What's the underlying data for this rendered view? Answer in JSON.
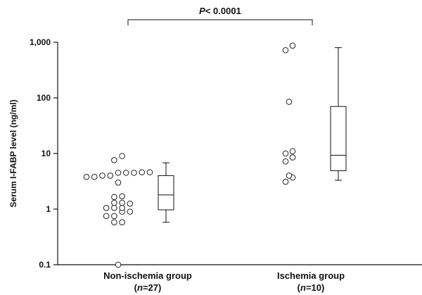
{
  "chart_data": {
    "type": "scatter",
    "ylabel": "Serum I-FABP level (ng/ml)",
    "yscale": "log",
    "ylim": [
      0.1,
      1000
    ],
    "yticks": [
      0.1,
      1,
      10,
      100,
      1000
    ],
    "ytick_labels": [
      "0.1",
      "1",
      "10",
      "100",
      "1,000"
    ],
    "significance": {
      "italic": "P",
      "rest": "< 0.0001"
    },
    "groups": [
      {
        "name": "Non-ischemia group",
        "n_prefix": "(",
        "n_italic": "n",
        "n_suffix": "=27)",
        "points": [
          0.1,
          0.58,
          0.58,
          0.75,
          0.75,
          0.9,
          0.9,
          1.05,
          1.05,
          1.05,
          1.25,
          1.3,
          1.3,
          1.65,
          1.7,
          3.0,
          3.8,
          3.8,
          4.0,
          4.0,
          4.5,
          4.5,
          4.5,
          4.6,
          4.6,
          7.6,
          9.0
        ],
        "box": {
          "whisker_low": 0.58,
          "q1": 0.97,
          "median": 1.8,
          "q3": 4.0,
          "whisker_high": 6.8
        }
      },
      {
        "name": "Ischemia group",
        "n_prefix": "(",
        "n_italic": "n",
        "n_suffix": "=10)",
        "points": [
          3.1,
          3.7,
          4.0,
          7.2,
          8.5,
          10.0,
          11.0,
          85,
          720,
          870
        ],
        "box": {
          "whisker_low": 3.3,
          "q1": 4.9,
          "median": 9.3,
          "q3": 70,
          "whisker_high": 800
        }
      }
    ]
  }
}
